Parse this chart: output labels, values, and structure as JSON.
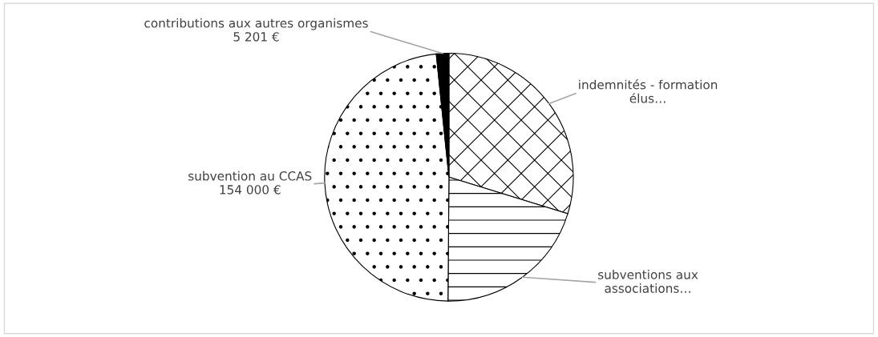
{
  "chart_data": {
    "type": "pie",
    "categories": [
      "indemnités - formation\nélus…",
      "subventions aux\nassociations…",
      "subvention au CCAS",
      "contributions aux autres organismes"
    ],
    "values": [
      95000,
      65000,
      154000,
      5201
    ],
    "value_labels": [
      null,
      null,
      "154 000 €",
      "5 201 €"
    ],
    "colors": [
      "#ffffff",
      "#ffffff",
      "#ffffff",
      "#000000"
    ],
    "legend": false
  }
}
